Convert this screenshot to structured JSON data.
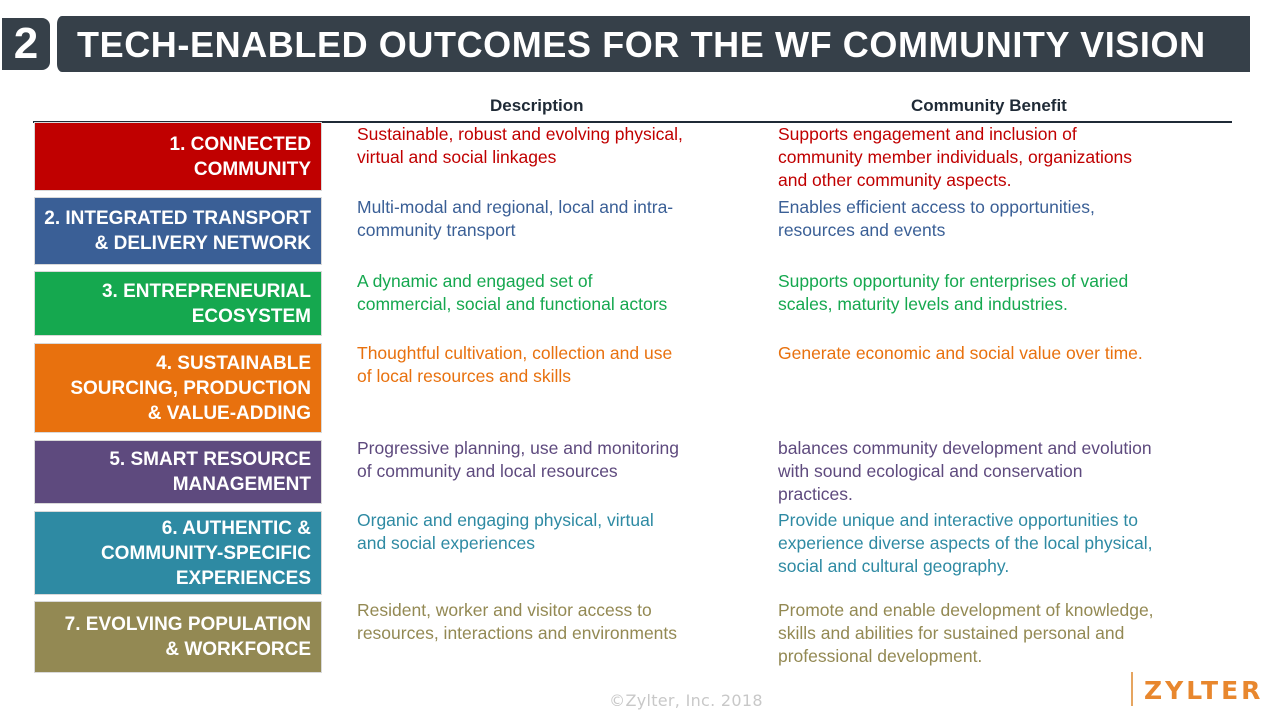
{
  "header": {
    "number": "2",
    "title": "TECH-ENABLED OUTCOMES FOR THE WF COMMUNITY VISION"
  },
  "columns": {
    "description": "Description",
    "benefit": "Community Benefit"
  },
  "rows": [
    {
      "label": "1.   CONNECTED\nCOMMUNITY",
      "color": "#c00000",
      "description": "Sustainable, robust and evolving physical,\nvirtual and social linkages",
      "benefit": "Supports engagement and inclusion of\ncommunity member individuals, organizations\nand other community aspects."
    },
    {
      "label": "2. INTEGRATED TRANSPORT\n& DELIVERY NETWORK",
      "color": "#3a5f96",
      "description": "Multi-modal and regional, local and intra-\ncommunity transport",
      "benefit": "Enables efficient access to opportunities,\nresources and events"
    },
    {
      "label": "3. ENTREPRENEURIAL\nECOSYSTEM",
      "color": "#15a84f",
      "description": "A dynamic and engaged set of\ncommercial, social and functional actors",
      "benefit": "Supports opportunity for enterprises of varied\nscales, maturity levels and industries."
    },
    {
      "label": "4. SUSTAINABLE\nSOURCING, PRODUCTION\n&  VALUE-ADDING",
      "color": "#e8710e",
      "description": "Thoughtful cultivation, collection and use\nof local resources and skills",
      "benefit": "Generate economic and social value over time."
    },
    {
      "label": "5. SMART RESOURCE\nMANAGEMENT",
      "color": "#5e4a7e",
      "description": "Progressive planning, use and monitoring\nof community and local resources",
      "benefit": "balances community development and evolution\nwith sound ecological and conservation\npractices."
    },
    {
      "label": "6. AUTHENTIC &\nCOMMUNITY-SPECIFIC\nEXPERIENCES",
      "color": "#2e8aa3",
      "description": "Organic and engaging physical, virtual\nand social experiences",
      "benefit": "Provide unique and interactive opportunities to\nexperience diverse aspects of the local physical,\nsocial and cultural geography."
    },
    {
      "label": "7. EVOLVING POPULATION\n& WORKFORCE",
      "color": "#938953",
      "description": "Resident, worker and visitor access to\nresources, interactions and environments",
      "benefit": "Promote and enable development of knowledge,\nskills and abilities for sustained personal and\nprofessional development."
    }
  ],
  "footer": {
    "copyright": "©Zylter, Inc. 2018",
    "logo": "ZYLTER",
    "logo_color": "#e8872e"
  }
}
